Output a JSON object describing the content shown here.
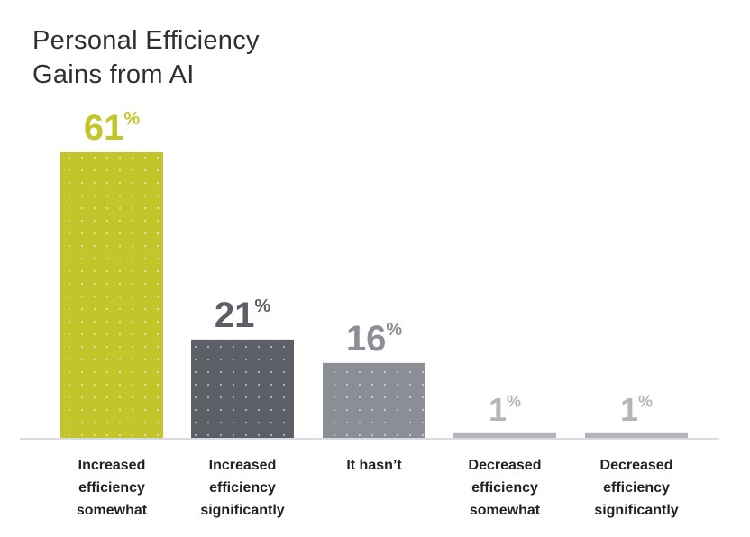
{
  "chart_data": {
    "type": "bar",
    "title_lines": [
      "Personal Efficiency",
      "Gains from AI"
    ],
    "categories": [
      [
        "Increased",
        "efficiency",
        "somewhat"
      ],
      [
        "Increased",
        "efficiency",
        "significantly"
      ],
      [
        "It hasn’t"
      ],
      [
        "Decreased",
        "efficiency",
        "somewhat"
      ],
      [
        "Decreased",
        "efficiency",
        "significantly"
      ]
    ],
    "values": [
      61,
      21,
      16,
      1,
      1
    ],
    "value_suffix": "%",
    "bar_colors": [
      "#c3c62a",
      "#5c5f66",
      "#8b8e94",
      "#b3b5ba",
      "#b3b5ba"
    ],
    "label_colors": [
      "#c3c62a",
      "#5c5f66",
      "#8b8e94",
      "#b3b5ba",
      "#b3b5ba"
    ],
    "baseline_color": "#d6dbe4",
    "xlabel": "",
    "ylabel": "",
    "ylim": [
      0,
      61
    ]
  }
}
